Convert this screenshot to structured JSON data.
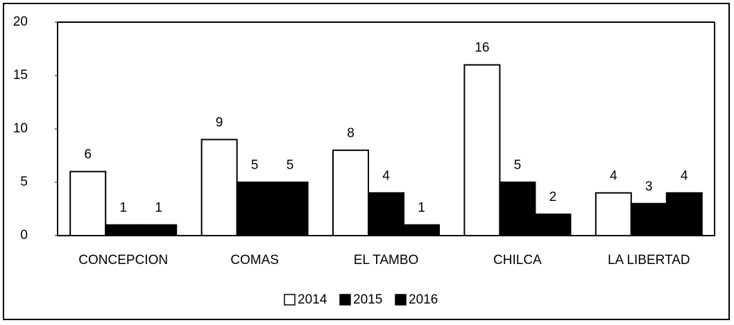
{
  "chart_data": {
    "type": "bar",
    "categories": [
      "CONCEPCION",
      "COMAS",
      "EL TAMBO",
      "CHILCA",
      "LA LIBERTAD"
    ],
    "series": [
      {
        "name": "2014",
        "color": "#ffffff",
        "values": [
          6,
          9,
          8,
          16,
          4
        ]
      },
      {
        "name": "2015",
        "color": "#000000",
        "values": [
          1,
          5,
          4,
          5,
          3
        ]
      },
      {
        "name": "2016",
        "color": "#000000",
        "values": [
          1,
          5,
          1,
          2,
          4
        ]
      }
    ],
    "ylim": [
      0,
      20
    ],
    "yticks": [
      0,
      5,
      10,
      15,
      20
    ],
    "legend": "bottom"
  }
}
